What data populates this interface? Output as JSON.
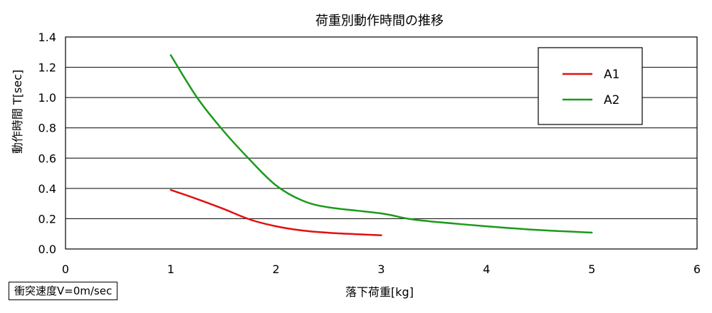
{
  "chart_data": {
    "type": "line",
    "title": "荷重別動作時間の推移",
    "xlabel": "落下荷重[kg]",
    "ylabel": "動作時間 T[sec]",
    "xlim": [
      0,
      6
    ],
    "ylim": [
      0,
      1.4
    ],
    "x_ticks": [
      "0",
      "1",
      "2",
      "3",
      "4",
      "5",
      "6"
    ],
    "y_ticks": [
      "0.0",
      "0.2",
      "0.4",
      "0.6",
      "0.8",
      "1.0",
      "1.2",
      "1.4"
    ],
    "grid": "horizontal",
    "legend_position": "top-right",
    "series": [
      {
        "name": "A1",
        "color": "#e01010",
        "points": [
          [
            1.0,
            0.39
          ],
          [
            1.25,
            0.33
          ],
          [
            1.5,
            0.265
          ],
          [
            1.75,
            0.195
          ],
          [
            2.0,
            0.15
          ],
          [
            2.25,
            0.122
          ],
          [
            2.5,
            0.107
          ],
          [
            2.75,
            0.098
          ],
          [
            3.0,
            0.09
          ]
        ]
      },
      {
        "name": "A2",
        "color": "#1a9a1a",
        "points": [
          [
            1.0,
            1.28
          ],
          [
            1.25,
            1.0
          ],
          [
            1.5,
            0.78
          ],
          [
            1.75,
            0.59
          ],
          [
            2.0,
            0.42
          ],
          [
            2.25,
            0.32
          ],
          [
            2.5,
            0.275
          ],
          [
            3.0,
            0.235
          ],
          [
            3.25,
            0.2
          ],
          [
            3.5,
            0.18
          ],
          [
            4.0,
            0.15
          ],
          [
            4.5,
            0.125
          ],
          [
            5.0,
            0.108
          ]
        ]
      }
    ]
  },
  "note": "衝突速度V=0m/sec"
}
